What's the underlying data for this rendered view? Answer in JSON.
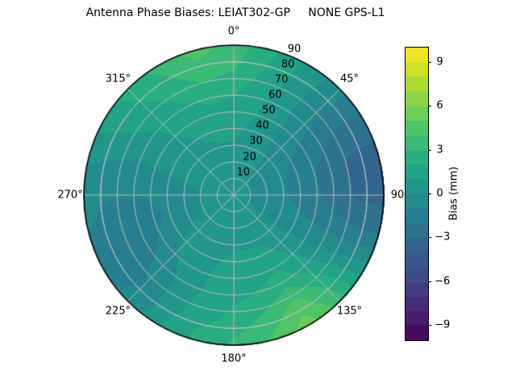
{
  "title": "Antenna Phase Biases: LEIAT302-GP     NONE GPS-L1",
  "chart_data": {
    "type": "heatmap",
    "projection": "polar",
    "theta_zero_location": "top",
    "theta_direction": "clockwise",
    "theta_tick_angles_deg": [
      0,
      45,
      90,
      135,
      180,
      225,
      270,
      315
    ],
    "theta_tick_labels": [
      "0°",
      "45°",
      "90",
      "135°",
      "180°",
      "225°",
      "270°",
      "315°"
    ],
    "r_ticks": [
      10,
      20,
      30,
      40,
      50,
      60,
      70,
      80,
      90
    ],
    "r_tick_labels": [
      "10",
      "20",
      "30",
      "40",
      "50",
      "60",
      "70",
      "80",
      "90"
    ],
    "r_max": 90,
    "r_label_angle_deg": 22.5,
    "grid_color": "#c3c3c3",
    "outline_color": "#000000",
    "colorbar": {
      "label": "Bias (mm)",
      "ticks": [
        9,
        6,
        3,
        0,
        -3,
        -6,
        -9
      ],
      "tick_labels": [
        "9",
        "6",
        "3",
        "0",
        "−3",
        "−6",
        "−9"
      ],
      "vmin": -10,
      "vmax": 10,
      "level_step": 1
    },
    "colormap": {
      "name": "viridis",
      "stops": [
        "#440154",
        "#482475",
        "#414487",
        "#355f8d",
        "#2a788e",
        "#21918c",
        "#22a884",
        "#44bf70",
        "#7ad151",
        "#bddf26",
        "#fde725"
      ]
    },
    "grid": {
      "azimuth_deg": [
        0,
        15,
        30,
        45,
        60,
        75,
        90,
        105,
        120,
        135,
        150,
        165,
        180,
        195,
        210,
        225,
        240,
        255,
        270,
        285,
        300,
        315,
        330,
        345
      ],
      "zenith_deg": [
        0,
        15,
        30,
        45,
        60,
        75,
        90
      ],
      "values_mm": [
        [
          0.6,
          0.6,
          0.6,
          0.6,
          0.6,
          0.6,
          0.6,
          0.6,
          0.6,
          0.6,
          0.6,
          0.6,
          0.6,
          0.6,
          0.6,
          0.6,
          0.6,
          0.6,
          0.6,
          0.6,
          0.6,
          0.6,
          0.6,
          0.6
        ],
        [
          0.7,
          0.5,
          0.2,
          -0.1,
          -0.4,
          -0.5,
          -0.5,
          -0.4,
          -0.1,
          0.2,
          0.4,
          0.5,
          0.6,
          0.6,
          0.5,
          0.4,
          0.2,
          0.1,
          0.1,
          0.2,
          0.4,
          0.5,
          0.6,
          0.7
        ],
        [
          0.9,
          0.6,
          0.2,
          -0.2,
          -0.7,
          -0.9,
          -0.9,
          -0.6,
          -0.2,
          0.4,
          0.8,
          0.9,
          0.9,
          0.8,
          0.6,
          0.3,
          -0.1,
          -0.4,
          -0.3,
          0.0,
          0.3,
          0.6,
          0.8,
          0.9
        ],
        [
          1.4,
          0.9,
          0.2,
          -0.5,
          -1.3,
          -1.7,
          -1.6,
          -1.1,
          -0.3,
          0.8,
          1.5,
          1.4,
          1.3,
          1.0,
          0.6,
          0.1,
          -0.6,
          -1.1,
          -0.7,
          -0.1,
          0.5,
          0.9,
          1.2,
          1.5
        ],
        [
          2.0,
          1.2,
          0.3,
          -0.8,
          -1.9,
          -2.5,
          -2.4,
          -1.6,
          -0.2,
          1.6,
          2.6,
          2.1,
          1.7,
          1.2,
          0.4,
          -0.6,
          -1.4,
          -1.7,
          -1.1,
          -0.3,
          0.6,
          1.2,
          1.8,
          2.2
        ],
        [
          3.0,
          1.8,
          0.5,
          -0.8,
          -2.4,
          -3.3,
          -3.2,
          -2.0,
          0.2,
          2.8,
          4.4,
          3.2,
          2.4,
          1.6,
          0.6,
          -1.0,
          -1.5,
          -1.5,
          -0.9,
          -0.1,
          1.0,
          1.8,
          2.6,
          3.4
        ],
        [
          3.6,
          2.2,
          0.8,
          -0.6,
          -2.4,
          -3.4,
          -3.4,
          -2.0,
          0.6,
          3.6,
          5.6,
          4.2,
          3.2,
          2.4,
          1.0,
          -0.8,
          -1.2,
          -1.0,
          -0.6,
          0.2,
          1.4,
          2.4,
          3.4,
          4.4
        ]
      ]
    }
  }
}
